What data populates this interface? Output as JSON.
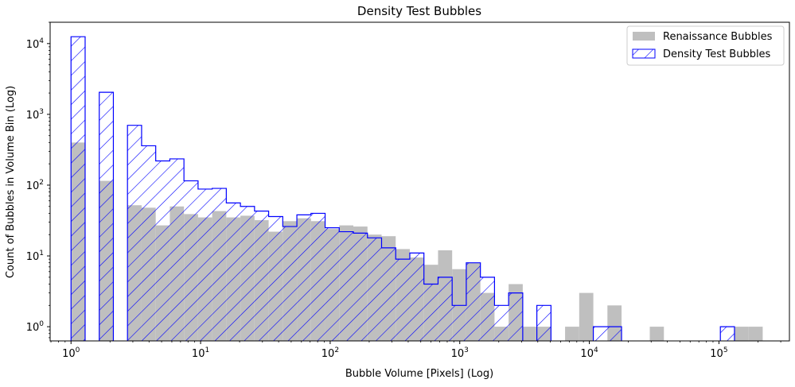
{
  "chart_data": {
    "type": "bar",
    "title": "Density Test Bubbles",
    "xlabel": "Bubble Volume [Pixels] (Log)",
    "ylabel": "Count of Bubbles in Volume Bin (Log)",
    "x_scale": "log",
    "y_scale": "log",
    "xlim": [
      0.69,
      350000
    ],
    "ylim": [
      0.63,
      20000
    ],
    "grid": false,
    "legend": "top-right",
    "x_ticks": [
      {
        "value": 1,
        "base": "10",
        "exp": "0"
      },
      {
        "value": 10,
        "base": "10",
        "exp": "1"
      },
      {
        "value": 100,
        "base": "10",
        "exp": "2"
      },
      {
        "value": 1000,
        "base": "10",
        "exp": "3"
      },
      {
        "value": 10000,
        "base": "10",
        "exp": "4"
      },
      {
        "value": 100000,
        "base": "10",
        "exp": "5"
      }
    ],
    "y_ticks": [
      {
        "value": 1,
        "base": "10",
        "exp": "0"
      },
      {
        "value": 10,
        "base": "10",
        "exp": "1"
      },
      {
        "value": 100,
        "base": "10",
        "exp": "2"
      },
      {
        "value": 1000,
        "base": "10",
        "exp": "3"
      },
      {
        "value": 10000,
        "base": "10",
        "exp": "4"
      }
    ],
    "bin_edges": [
      1,
      1.2851,
      1.6515,
      2.1224,
      2.7274,
      3.5051,
      4.5044,
      5.7886,
      7.4389,
      9.5598,
      12.2852,
      15.7878,
      20.2889,
      26.0732,
      33.5066,
      43.0593,
      55.3356,
      71.1117,
      91.3856,
      117.4395,
      150.9213,
      193.9488,
      249.2434,
      320.3024,
      411.6205,
      528.9724,
      679.7805,
      873.5836,
      1122.64,
      1442.7,
      1854.02,
      2382.6,
      3061.87,
      3934.79,
      5056.59,
      6498.21,
      8350.83,
      10731.6,
      13791.2,
      17723,
      22775.8,
      29269.1,
      37613.6,
      48337.1,
      62117.9,
      79827.6,
      102586,
      131833,
      169418,
      217719
    ],
    "series": [
      {
        "name": "Renaissance Bubbles",
        "style": "filled",
        "color": "#bfbfbf",
        "values": [
          400,
          0,
          115,
          0,
          52,
          48,
          27,
          50,
          39,
          35,
          43,
          35,
          37,
          32,
          22,
          31,
          34,
          31,
          24,
          27,
          26,
          20,
          19,
          12.5,
          9.5,
          7.5,
          12,
          6.5,
          8,
          3,
          1,
          4,
          1,
          1,
          0,
          1,
          3,
          0,
          2,
          0,
          0,
          1,
          0,
          0,
          0,
          0,
          0,
          1,
          1
        ]
      },
      {
        "name": "Density Test Bubbles",
        "style": "hatched",
        "color": "#0000ff",
        "values": [
          12500,
          0,
          2050,
          0,
          700,
          360,
          220,
          235,
          115,
          88,
          90,
          56,
          50,
          43,
          36,
          26,
          38,
          40,
          25,
          22,
          21,
          18,
          13,
          9,
          11,
          4,
          5,
          2,
          8,
          5,
          2,
          3,
          0,
          2,
          0,
          0,
          0,
          1,
          1,
          0,
          0,
          0,
          0,
          0,
          0,
          0,
          1,
          0,
          0
        ]
      }
    ]
  }
}
